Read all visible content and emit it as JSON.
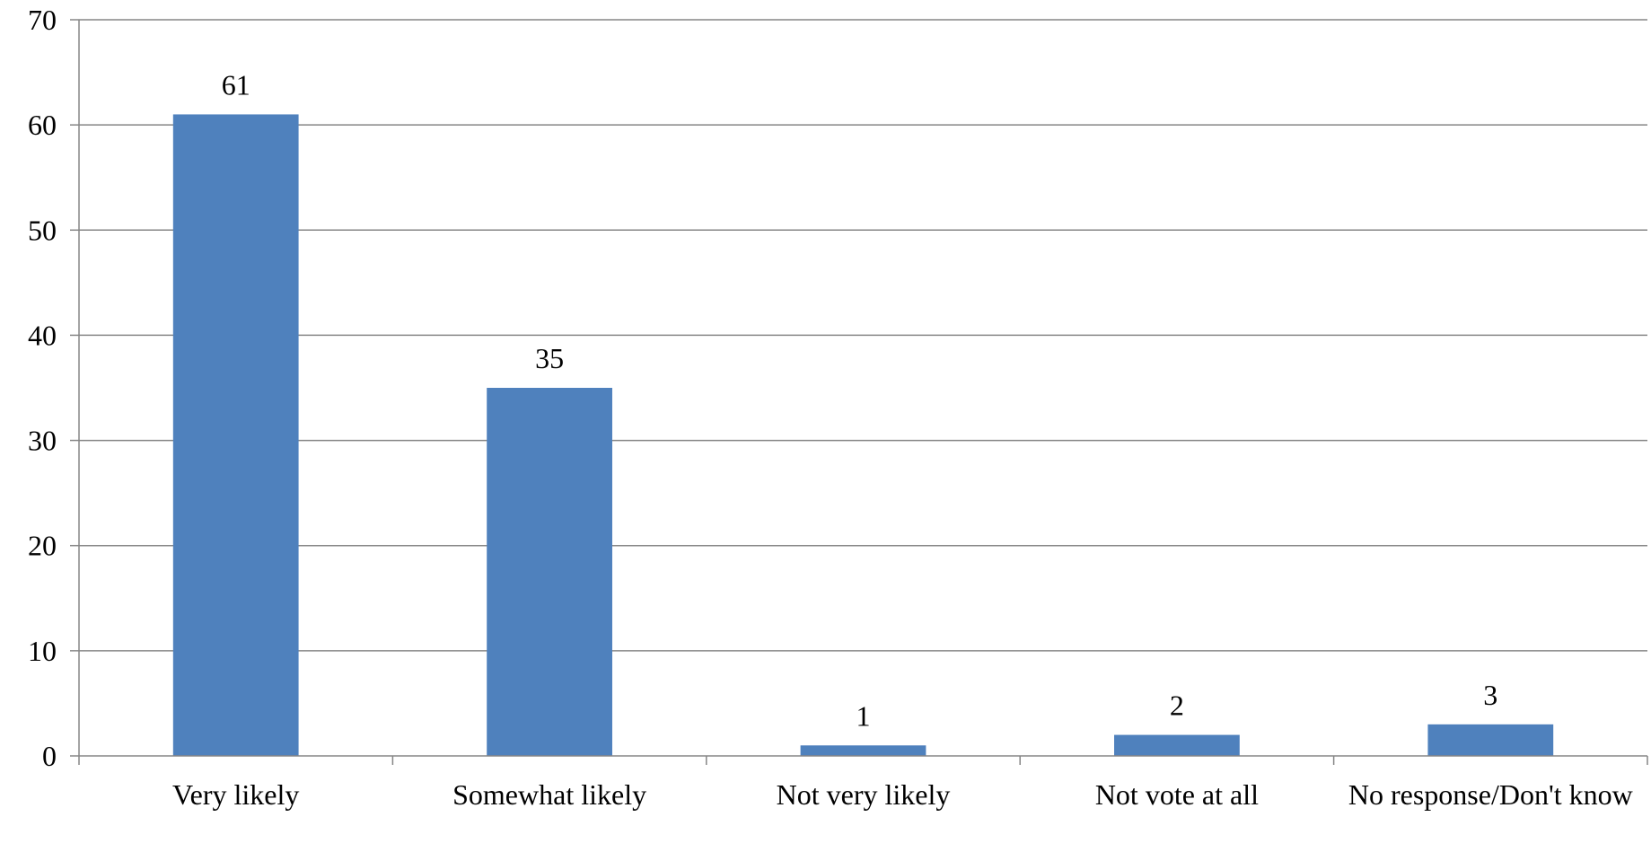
{
  "chart_data": {
    "type": "bar",
    "title": "",
    "xlabel": "",
    "ylabel": "",
    "categories": [
      "Very likely",
      "Somewhat likely",
      "Not very likely",
      "Not vote at all",
      "No response/Don't know"
    ],
    "values": [
      61,
      35,
      1,
      2,
      3
    ],
    "data_labels": [
      "61",
      "35",
      "1",
      "2",
      "3"
    ],
    "ylim": [
      0,
      70
    ],
    "yticks": [
      0,
      10,
      20,
      30,
      40,
      50,
      60,
      70
    ],
    "ytick_labels": [
      "0",
      "10",
      "20",
      "30",
      "40",
      "50",
      "60",
      "70"
    ],
    "grid": true,
    "legend": "none",
    "bar_color": "#4F81BD",
    "grid_color": "#868686"
  }
}
